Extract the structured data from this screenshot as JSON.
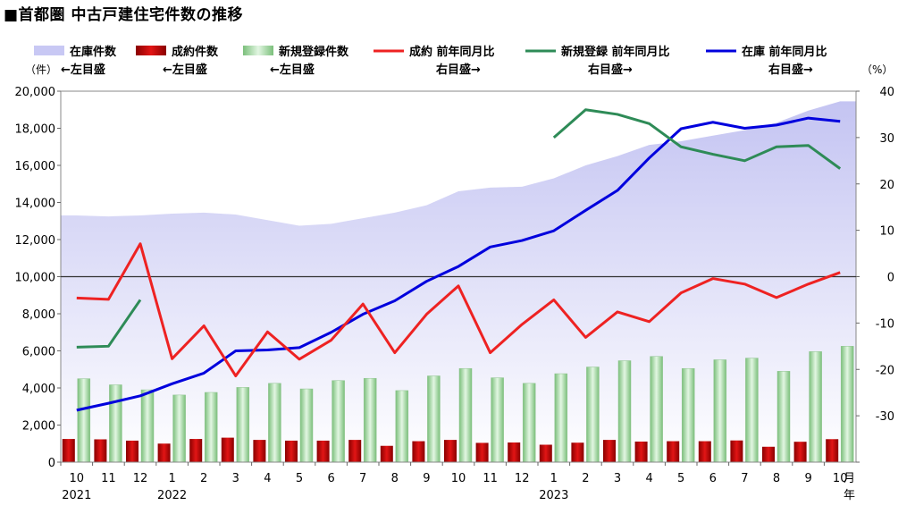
{
  "title": "■首都圏 中古戸建住宅件数の推移",
  "chart_data": {
    "type": "bar+line+area",
    "categories": [
      "10",
      "11",
      "12",
      "1",
      "2",
      "3",
      "4",
      "5",
      "6",
      "7",
      "8",
      "9",
      "10",
      "11",
      "12",
      "1",
      "2",
      "3",
      "4",
      "5",
      "6",
      "7",
      "8",
      "9",
      "10"
    ],
    "x_unit_label": "月",
    "year_unit_label": "年",
    "year_labels": [
      {
        "index": 0,
        "label": "2021"
      },
      {
        "index": 3,
        "label": "2022"
      },
      {
        "index": 15,
        "label": "2023"
      }
    ],
    "left_axis": {
      "unit": "（件）",
      "min": 0,
      "max": 20000,
      "ticks": [
        "0",
        "2,000",
        "4,000",
        "6,000",
        "8,000",
        "10,000",
        "12,000",
        "14,000",
        "16,000",
        "18,000",
        "20,000"
      ]
    },
    "right_axis": {
      "unit": "（%）",
      "min": -40,
      "max": 40,
      "ticks": [
        "-30",
        "-20",
        "-10",
        "0",
        "10",
        "20",
        "30",
        "40"
      ]
    },
    "legend": [
      {
        "label": "在庫件数",
        "note": "←左目盛",
        "kind": "area",
        "color": "#c8c8f4"
      },
      {
        "label": "成約件数",
        "note": "←左目盛",
        "kind": "bar",
        "color": "#cc1111"
      },
      {
        "label": "新規登録件数",
        "note": "←左目盛",
        "kind": "bar",
        "color": "#9fd69f"
      },
      {
        "label": "成約 前年同月比",
        "note": "右目盛→",
        "kind": "line",
        "color": "#ee2222"
      },
      {
        "label": "新規登録 前年同月比",
        "note": "右目盛→",
        "kind": "line",
        "color": "#2e8b57"
      },
      {
        "label": "在庫 前年同月比",
        "note": "右目盛→",
        "kind": "line",
        "color": "#0000dd"
      }
    ],
    "series": [
      {
        "name": "在庫件数",
        "axis": "left",
        "values": [
          13300,
          13250,
          13300,
          13400,
          13450,
          13350,
          13050,
          12750,
          12850,
          13150,
          13450,
          13850,
          14600,
          14800,
          14850,
          15300,
          16000,
          16500,
          17100,
          17300,
          17600,
          17900,
          18300,
          18950,
          19450
        ]
      },
      {
        "name": "成約件数",
        "axis": "left",
        "values": [
          1250,
          1230,
          1160,
          1000,
          1250,
          1320,
          1200,
          1160,
          1160,
          1200,
          880,
          1130,
          1200,
          1040,
          1060,
          940,
          1050,
          1200,
          1110,
          1130,
          1130,
          1170,
          830,
          1100,
          1240
        ]
      },
      {
        "name": "新規登録件数",
        "axis": "left",
        "values": [
          4500,
          4170,
          3900,
          3620,
          3760,
          4030,
          4250,
          3950,
          4400,
          4520,
          3860,
          4650,
          5050,
          4550,
          4250,
          4770,
          5130,
          5470,
          5700,
          5050,
          5520,
          5610,
          4900,
          5960,
          6250
        ]
      },
      {
        "name": "成約 前年同月比",
        "axis": "right",
        "values": [
          -4.6,
          -4.9,
          7.1,
          -17.7,
          -10.6,
          -21.4,
          -11.9,
          -17.8,
          -13.7,
          -5.9,
          -16.4,
          -8.1,
          -2.0,
          -16.4,
          -10.3,
          -5.0,
          -13.1,
          -7.6,
          -9.7,
          -3.5,
          -0.4,
          -1.6,
          -4.5,
          -1.6,
          0.9
        ]
      },
      {
        "name": "新規登録 前年同月比",
        "axis": "right",
        "values": [
          -15.2,
          -15.0,
          -5.0,
          null,
          null,
          null,
          null,
          null,
          null,
          null,
          null,
          null,
          null,
          null,
          null,
          30.0,
          36.0,
          35.0,
          33.0,
          28.0,
          26.4,
          25.0,
          28.0,
          28.3,
          23.3
        ]
      },
      {
        "name": "在庫 前年同月比",
        "axis": "right",
        "values": [
          -28.8,
          -27.3,
          -25.7,
          -23.1,
          -20.8,
          -16.0,
          -15.8,
          -15.3,
          -12.0,
          -8.1,
          -5.2,
          -1.0,
          2.2,
          6.4,
          7.8,
          9.9,
          14.3,
          18.6,
          25.6,
          31.9,
          33.3,
          32.0,
          32.7,
          34.2,
          33.5
        ]
      }
    ]
  }
}
